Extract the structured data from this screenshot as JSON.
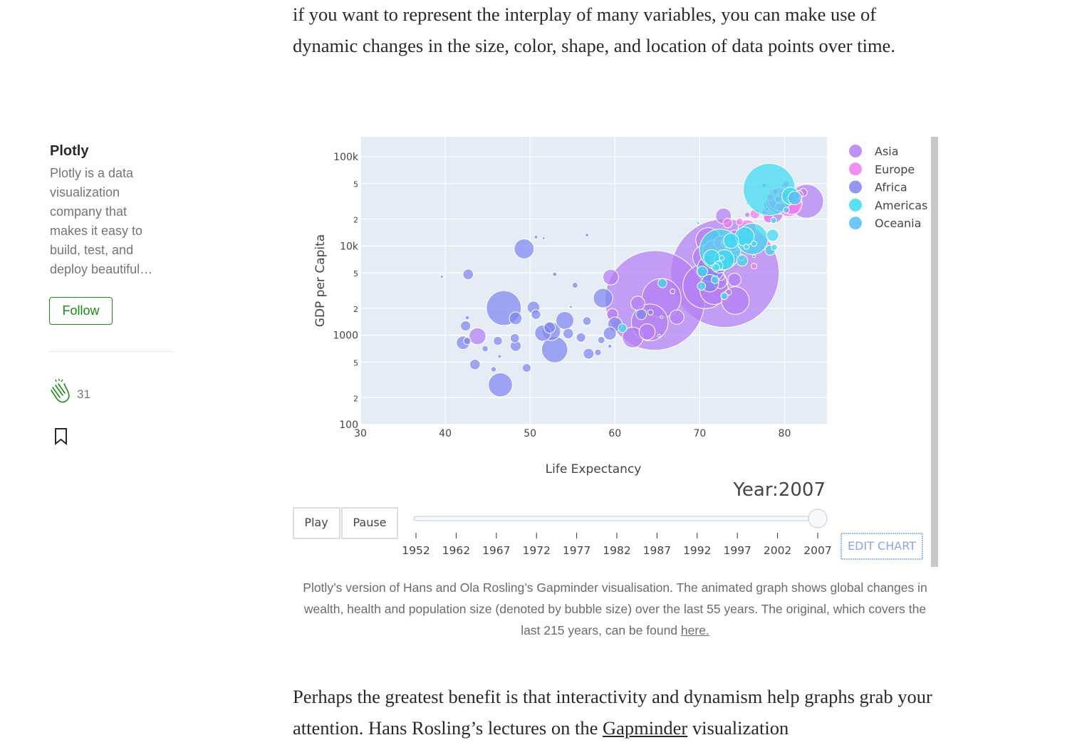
{
  "sidebar": {
    "author": "Plotly",
    "bio": "Plotly is a data visualization company that makes it easy to build, test, and deploy beautiful…",
    "follow": "Follow",
    "claps": "31"
  },
  "article": {
    "intro": "if you want to represent the interplay of many variables, you can make use of dynamic changes in the size, color, shape, and location of data points over time.",
    "closing": {
      "text": "Perhaps the greatest benefit is that interactivity and dynamism help graphs grab your attention. Hans Rosling’s lectures on the ",
      "link": "Gapminder",
      "text_after": " visualization"
    }
  },
  "caption": {
    "text": "Plotly’s version of Hans and Ola Rosling’s Gapminder visualisation. The animated graph shows global changes in wealth, health and population size (denoted by bubble size) over the last 55 years. The original, which covers the last 215 years, can be found ",
    "link": "here."
  },
  "chart_data": {
    "type": "bubble",
    "x_label": "Life Expectancy",
    "y_label": "GDP per Capita",
    "log_y": true,
    "grid": true,
    "legend": "right",
    "xlim": [
      30,
      85
    ],
    "xticks": [
      30,
      40,
      50,
      60,
      70,
      80
    ],
    "ylim": [
      100,
      167000
    ],
    "yticks": [
      100,
      {
        "value": 200,
        "label": "2"
      },
      {
        "value": 500,
        "label": "5"
      },
      1000,
      {
        "value": 2000,
        "label": "2"
      },
      {
        "value": 5000,
        "label": "5"
      },
      {
        "value": 10000,
        "label": "10k"
      },
      {
        "value": 20000,
        "label": "2"
      },
      {
        "value": 50000,
        "label": "5"
      },
      {
        "value": 100000,
        "label": "100k"
      }
    ],
    "series": [
      {
        "name": "Asia",
        "color": "#b47ef4",
        "x": [
          72.96,
          64.7,
          70.65,
          82.6,
          65.5,
          64.1,
          71.7,
          74.2,
          71.0,
          70.6,
          62.1,
          78.6,
          43.8,
          59.5,
          63.8,
          74.2,
          72.8,
          62.7,
          72.4,
          78.4,
          67.3,
          74.1,
          59.7,
          82.2,
          80.7,
          72.5,
          80.0,
          77.6,
          72.0,
          66.8,
          75.6,
          73.4,
          75.6
        ],
        "values": [
          4959,
          2452,
          3541,
          31656,
          2606,
          1391,
          3190,
          2442,
          11606,
          7458,
          944,
          23348,
          974,
          4471,
          1091,
          12452,
          21655,
          2281,
          3970,
          28718,
          1593,
          4185,
          1714,
          39725,
          25523,
          4519,
          47143,
          47307,
          10461,
          3096,
          22316,
          3025,
          29796
        ],
        "size": [
          1318.7,
          1110.4,
          223.5,
          127.5,
          169.3,
          150.4,
          91.1,
          85.3,
          69.5,
          65.1,
          47.8,
          49.0,
          31.9,
          27.5,
          28.9,
          24.8,
          27.6,
          22.2,
          20.4,
          23.2,
          23.3,
          19.3,
          14.1,
          6.98,
          6.4,
          6.05,
          4.55,
          2.5,
          3.9,
          2.87,
          3.2,
          4.0,
          0.7
        ]
      },
      {
        "name": "Europe",
        "color": "#f07cef",
        "x": [
          79.4,
          71.8,
          80.7,
          79.4,
          80.5,
          80.9,
          75.6,
          72.5,
          79.8,
          79.5,
          78.1,
          79.4,
          76.5,
          73.3,
          80.9,
          74.0,
          79.8,
          73.0,
          81.7,
          78.3,
          74.7,
          79.3,
          80.2,
          75.7,
          78.9,
          74.9,
          76.4,
          77.9,
          74.5,
          81.8
        ],
        "values": [
          32170,
          8458,
          30470,
          33203,
          28570,
          28821,
          15390,
          10808,
          36798,
          27538,
          20510,
          33693,
          22833,
          18009,
          33860,
          9787,
          36126,
          10681,
          37506,
          35278,
          18678,
          33207,
          49357,
          14619,
          40676,
          7446,
          5937,
          25768,
          9254,
          36181
        ],
        "size": [
          82.4,
          71.2,
          61.1,
          60.8,
          58.1,
          40.4,
          38.5,
          22.3,
          16.6,
          10.7,
          10.6,
          10.4,
          10.2,
          9.96,
          9.03,
          10.2,
          8.2,
          7.3,
          7.55,
          5.47,
          5.45,
          5.24,
          4.63,
          4.49,
          4.1,
          4.55,
          3.6,
          2.0,
          0.68,
          0.3
        ]
      },
      {
        "name": "Africa",
        "color": "#7f86f0",
        "x": [
          46.9,
          52.9,
          71.3,
          46.5,
          49.3,
          58.6,
          52.5,
          54.1,
          71.2,
          72.3,
          51.5,
          60.0,
          42.1,
          59.4,
          48.3,
          50.4,
          42.7,
          52.3,
          48.3,
          56.9,
          54.5,
          42.4,
          63.1,
          43.5,
          50.7,
          73.9,
          56.0,
          46.2,
          49.6,
          48.2,
          56.7,
          42.6,
          58.4,
          74.0,
          58.0,
          44.7,
          45.7,
          55.3,
          64.2,
          42.6,
          52.9,
          50.7,
          56.7,
          39.6,
          59.4,
          46.4,
          72.8,
          51.6,
          54.8,
          65.2,
          76.4,
          65.5
        ],
        "values": [
          2014,
          690,
          5581,
          278,
          9270,
          2602,
          1107,
          1463,
          3820,
          6223,
          1056,
          1328,
          824,
          1045,
          1545,
          2042,
          4797,
          1217,
          759,
          620,
          1043,
          1271,
          1712,
          470,
          1704,
          7093,
          943,
          863,
          430,
          926,
          1441,
          863,
          883,
          12057,
          641,
          706,
          415,
          3633,
          1803,
          1569,
          4811,
          12570,
          13206,
          4513,
          753,
          579,
          10957,
          12154,
          2082,
          986,
          7670,
          1598
        ],
        "size": [
          135,
          76.5,
          80.3,
          64.6,
          44,
          42.3,
          38.1,
          35.6,
          33.8,
          33.3,
          29.2,
          22.9,
          20.0,
          19.2,
          18.0,
          17.7,
          12.4,
          14.3,
          13.3,
          12.9,
          12.0,
          11.7,
          12.3,
          12.3,
          10.2,
          10.3,
          9.9,
          8.9,
          8.4,
          9.1,
          8.1,
          6.1,
          5.7,
          6.0,
          4.9,
          4.4,
          3.2,
          3.8,
          3.27,
          2.0,
          2.06,
          1.64,
          1.45,
          1.13,
          1.69,
          1.47,
          1.25,
          0.55,
          0.5,
          0.71,
          0.8,
          0.2
        ]
      },
      {
        "name": "Americas",
        "color": "#3fd9f0",
        "x": [
          78.2,
          72.4,
          76.2,
          72.9,
          75.3,
          80.7,
          71.4,
          73.7,
          78.6,
          75.0,
          70.3,
          78.3,
          65.6,
          60.9,
          72.2,
          70.2,
          71.9,
          71.8,
          72.9,
          78.8,
          78.7,
          76.4,
          75.5,
          72.6,
          69.8
        ],
        "values": [
          42952,
          9066,
          11978,
          7007,
          12779,
          36319,
          7409,
          11416,
          13172,
          6873,
          5186,
          8948,
          3822,
          1202,
          6025,
          3548,
          5728,
          4173,
          2749,
          9645,
          19329,
          10611,
          9809,
          7321,
          18009
        ],
        "size": [
          301,
          190,
          108.7,
          44.2,
          40.3,
          33.4,
          28.7,
          26.1,
          16.3,
          13.8,
          12.6,
          11.4,
          9.1,
          8.5,
          9.3,
          7.5,
          6.9,
          6.7,
          5.7,
          4.1,
          3.9,
          3.4,
          3.2,
          2.8,
          1.06
        ]
      },
      {
        "name": "Oceania",
        "color": "#56bcfa",
        "x": [
          81.2,
          80.2
        ],
        "values": [
          34435,
          25185
        ],
        "size": [
          20.4,
          4.1
        ]
      }
    ],
    "current_label": "Year:2007",
    "buttons": [
      "Play",
      "Pause"
    ],
    "slider_steps": [
      "1952",
      "1962",
      "1967",
      "1972",
      "1977",
      "1982",
      "1987",
      "1992",
      "1997",
      "2002",
      "2007"
    ],
    "edit_button": "EDIT CHART"
  }
}
